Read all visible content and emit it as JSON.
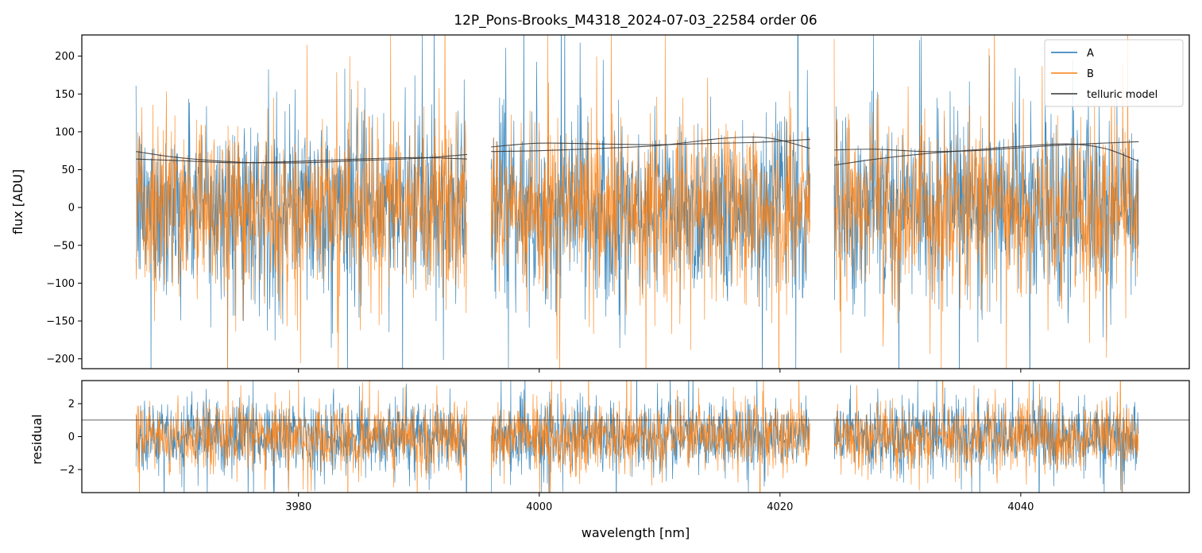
{
  "chart_data": [
    {
      "type": "line",
      "panel": "flux",
      "title": "12P_Pons-Brooks_M4318_2024-07-03_22584  order 06",
      "xlabel": "",
      "ylabel": "flux [ADU]",
      "xlim": [
        3962,
        4054
      ],
      "ylim": [
        -213,
        228
      ],
      "yticks": [
        -200,
        -150,
        -100,
        -50,
        0,
        50,
        100,
        150,
        200
      ],
      "ytick_labels": [
        "−200",
        "−150",
        "−100",
        "−50",
        "0",
        "50",
        "100",
        "150",
        "200"
      ],
      "xticks": [
        3980,
        4000,
        4020,
        4040
      ],
      "segments": [
        [
          3966.5,
          3994.0
        ],
        [
          3996.0,
          4022.5
        ],
        [
          4024.5,
          4049.8
        ]
      ],
      "series": [
        {
          "name": "A",
          "color": "#1f77b4",
          "noise_sigma": 58,
          "mean": 0
        },
        {
          "name": "B",
          "color": "#ff7f0e",
          "noise_sigma": 55,
          "mean": 0
        },
        {
          "name": "telluric model",
          "color": "#333333",
          "curves": [
            {
              "segment": 0,
              "points": [
                [
                  3966.5,
                  74
                ],
                [
                  3970,
                  66
                ],
                [
                  3975,
                  60
                ],
                [
                  3980,
                  59
                ],
                [
                  3985,
                  62
                ],
                [
                  3990,
                  65
                ],
                [
                  3994,
                  70
                ]
              ]
            },
            {
              "segment": 0,
              "points": [
                [
                  3966.5,
                  64
                ],
                [
                  3970,
                  62
                ],
                [
                  3975,
                  59
                ],
                [
                  3980,
                  61
                ],
                [
                  3985,
                  64
                ],
                [
                  3990,
                  66
                ],
                [
                  3994,
                  64
                ]
              ]
            },
            {
              "segment": 1,
              "points": [
                [
                  3996,
                  80
                ],
                [
                  4000,
                  85
                ],
                [
                  4005,
                  84
                ],
                [
                  4010,
                  83
                ],
                [
                  4015,
                  85
                ],
                [
                  4018,
                  86
                ],
                [
                  4022.5,
                  90
                ]
              ]
            },
            {
              "segment": 1,
              "points": [
                [
                  3996,
                  74
                ],
                [
                  4000,
                  75
                ],
                [
                  4005,
                  78
                ],
                [
                  4010,
                  82
                ],
                [
                  4015,
                  91
                ],
                [
                  4018,
                  93
                ],
                [
                  4020,
                  89
                ],
                [
                  4022.5,
                  78
                ]
              ]
            },
            {
              "segment": 2,
              "points": [
                [
                  4024.5,
                  76
                ],
                [
                  4028,
                  77
                ],
                [
                  4032,
                  74
                ],
                [
                  4036,
                  75
                ],
                [
                  4040,
                  79
                ],
                [
                  4044,
                  83
                ],
                [
                  4049.8,
                  87
                ]
              ]
            },
            {
              "segment": 2,
              "points": [
                [
                  4024.5,
                  56
                ],
                [
                  4028,
                  64
                ],
                [
                  4032,
                  71
                ],
                [
                  4036,
                  76
                ],
                [
                  4040,
                  81
                ],
                [
                  4044,
                  84
                ],
                [
                  4047,
                  78
                ],
                [
                  4049.8,
                  61
                ]
              ]
            }
          ]
        }
      ],
      "legend": {
        "entries": [
          "A",
          "B",
          "telluric model"
        ],
        "location": "upper right"
      }
    },
    {
      "type": "line",
      "panel": "residual",
      "xlabel": "wavelength [nm]",
      "ylabel": "residual",
      "xlim": [
        3962,
        4054
      ],
      "ylim": [
        -3.4,
        3.4
      ],
      "yticks": [
        -2,
        0,
        2
      ],
      "ytick_labels": [
        "−2",
        "0",
        "2"
      ],
      "xticks": [
        3980,
        4000,
        4020,
        4040
      ],
      "xtick_labels": [
        "3980",
        "4000",
        "4020",
        "4040"
      ],
      "reference_line": 1.0,
      "series": [
        {
          "name": "A",
          "color": "#1f77b4",
          "noise_sigma": 1.05,
          "mean": 0
        },
        {
          "name": "B",
          "color": "#ff7f0e",
          "noise_sigma": 1.0,
          "mean": 0
        }
      ]
    }
  ]
}
